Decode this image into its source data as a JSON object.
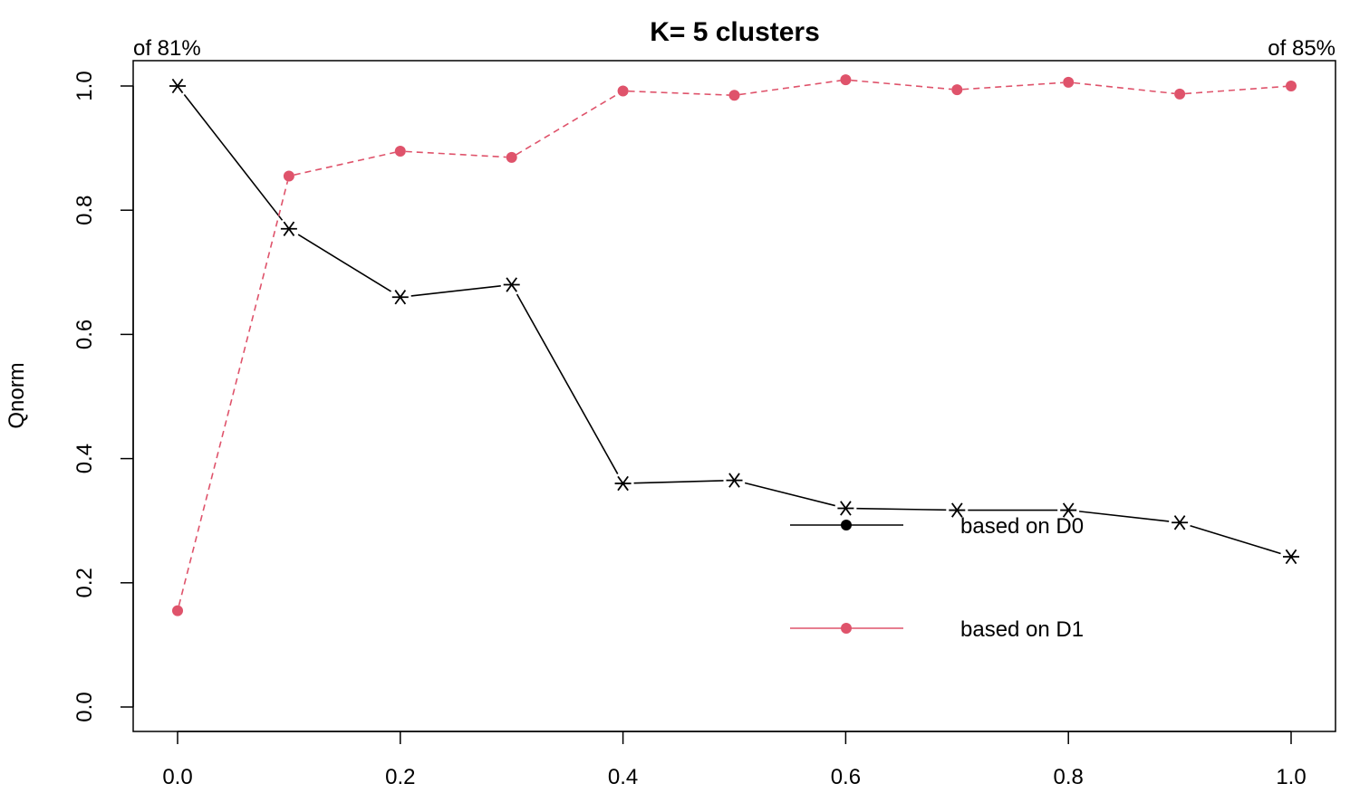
{
  "chart_data": {
    "type": "line",
    "title": "K= 5 clusters",
    "xlabel": "",
    "ylabel": "Qnorm",
    "xlim": [
      0.0,
      1.0
    ],
    "ylim": [
      0.0,
      1.0
    ],
    "x_ticks": [
      "0.0",
      "0.2",
      "0.4",
      "0.6",
      "0.8",
      "1.0"
    ],
    "y_ticks": [
      "0.0",
      "0.2",
      "0.4",
      "0.6",
      "0.8",
      "1.0"
    ],
    "grid": false,
    "top_left_label": "of 81%",
    "top_right_label": "of 85%",
    "legend_position": "bottom-right",
    "x": [
      0.0,
      0.1,
      0.2,
      0.3,
      0.4,
      0.5,
      0.6,
      0.7,
      0.8,
      0.9,
      1.0
    ],
    "series": [
      {
        "name": "based on D0",
        "color": "#000000",
        "line_style": "solid",
        "marker": "asterisk",
        "values": [
          1.0,
          0.77,
          0.66,
          0.68,
          0.36,
          0.365,
          0.32,
          0.317,
          0.317,
          0.297,
          0.242
        ]
      },
      {
        "name": "based on D1",
        "color": "#DF536B",
        "line_style": "dashed",
        "marker": "filled-circle",
        "values": [
          0.155,
          0.855,
          0.895,
          0.885,
          0.992,
          0.985,
          1.01,
          0.994,
          1.006,
          0.987,
          1.0
        ]
      }
    ]
  }
}
